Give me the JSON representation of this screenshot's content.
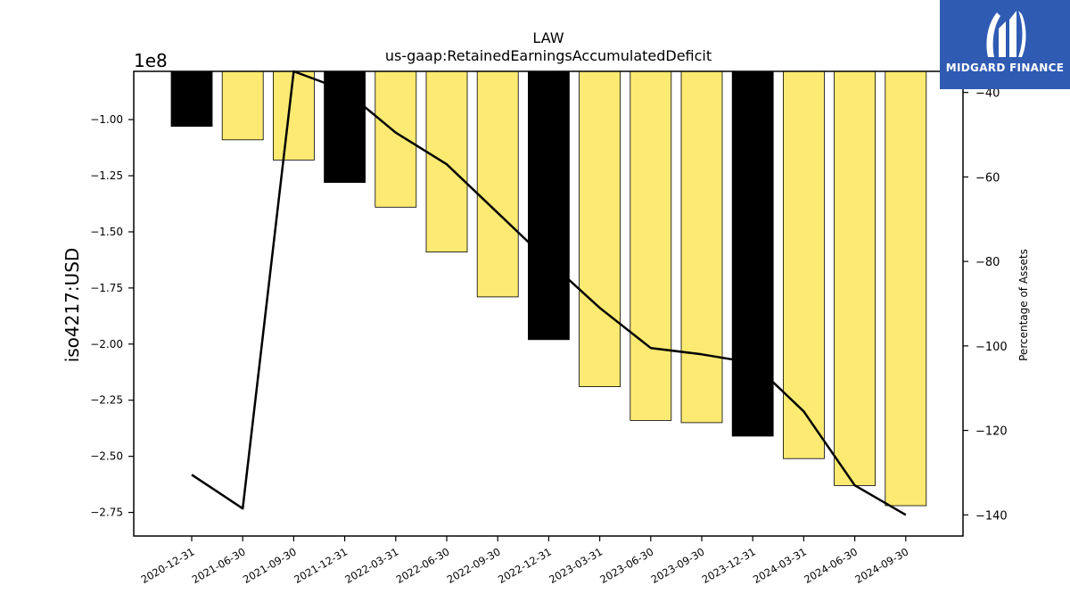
{
  "logo": {
    "name": "MIDGARD FINANCE"
  },
  "chart_data": {
    "type": "bar",
    "title": "LAW",
    "subtitle": "us-gaap:RetainedEarningsAccumulatedDeficit",
    "ylabel": "iso4217:USD",
    "ylabel_right": "Percentage of Assets",
    "y_offset_label": "1e8",
    "categories": [
      "2020-12-31",
      "2021-06-30",
      "2021-09-30",
      "2021-12-31",
      "2022-03-31",
      "2022-06-30",
      "2022-09-30",
      "2022-12-31",
      "2023-03-31",
      "2023-06-30",
      "2023-09-30",
      "2023-12-31",
      "2024-03-31",
      "2024-06-30",
      "2024-09-30"
    ],
    "series": [
      {
        "type": "bar",
        "values": [
          -1.03,
          -1.09,
          -1.18,
          -1.28,
          -1.39,
          -1.59,
          -1.79,
          -1.98,
          -2.19,
          -2.34,
          -2.35,
          -2.41,
          -2.51,
          -2.63,
          -2.72
        ],
        "colors": [
          "#000000",
          "#fdea73",
          "#fdea73",
          "#000000",
          "#fdea73",
          "#fdea73",
          "#fdea73",
          "#000000",
          "#fdea73",
          "#fdea73",
          "#fdea73",
          "#000000",
          "#fdea73",
          "#fdea73",
          "#fdea73"
        ]
      },
      {
        "type": "line",
        "axis": "right",
        "values": [
          -130.5,
          -138.5,
          -35,
          -39.5,
          -49.5,
          -57,
          -68.5,
          -80,
          -91,
          -100.5,
          -102,
          -104,
          -115.5,
          -133,
          -140
        ],
        "color": "#000000"
      }
    ],
    "ylim": [
      -2.855,
      -0.785
    ],
    "y2lim": [
      -145,
      -35
    ],
    "yticks": [
      -1.0,
      -1.25,
      -1.5,
      -1.75,
      -2.0,
      -2.25,
      -2.5,
      -2.75
    ],
    "ytick_labels": [
      "−1.00",
      "−1.25",
      "−1.50",
      "−1.75",
      "−2.00",
      "−2.25",
      "−2.50",
      "−2.75"
    ],
    "y2ticks": [
      -40,
      -60,
      -80,
      -100,
      -120,
      -140
    ],
    "y2tick_labels": [
      "−40",
      "−60",
      "−80",
      "−100",
      "−120",
      "−140"
    ],
    "grid": false
  }
}
